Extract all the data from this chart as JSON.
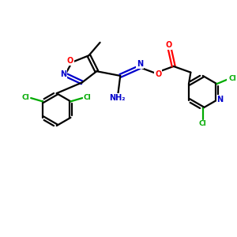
{
  "bg_color": "#ffffff",
  "bond_color": "#000000",
  "bond_width": 1.6,
  "atom_colors": {
    "O": "#ff0000",
    "N": "#0000cc",
    "Cl": "#00aa00",
    "C": "#000000"
  },
  "font_size_atom": 7.0
}
